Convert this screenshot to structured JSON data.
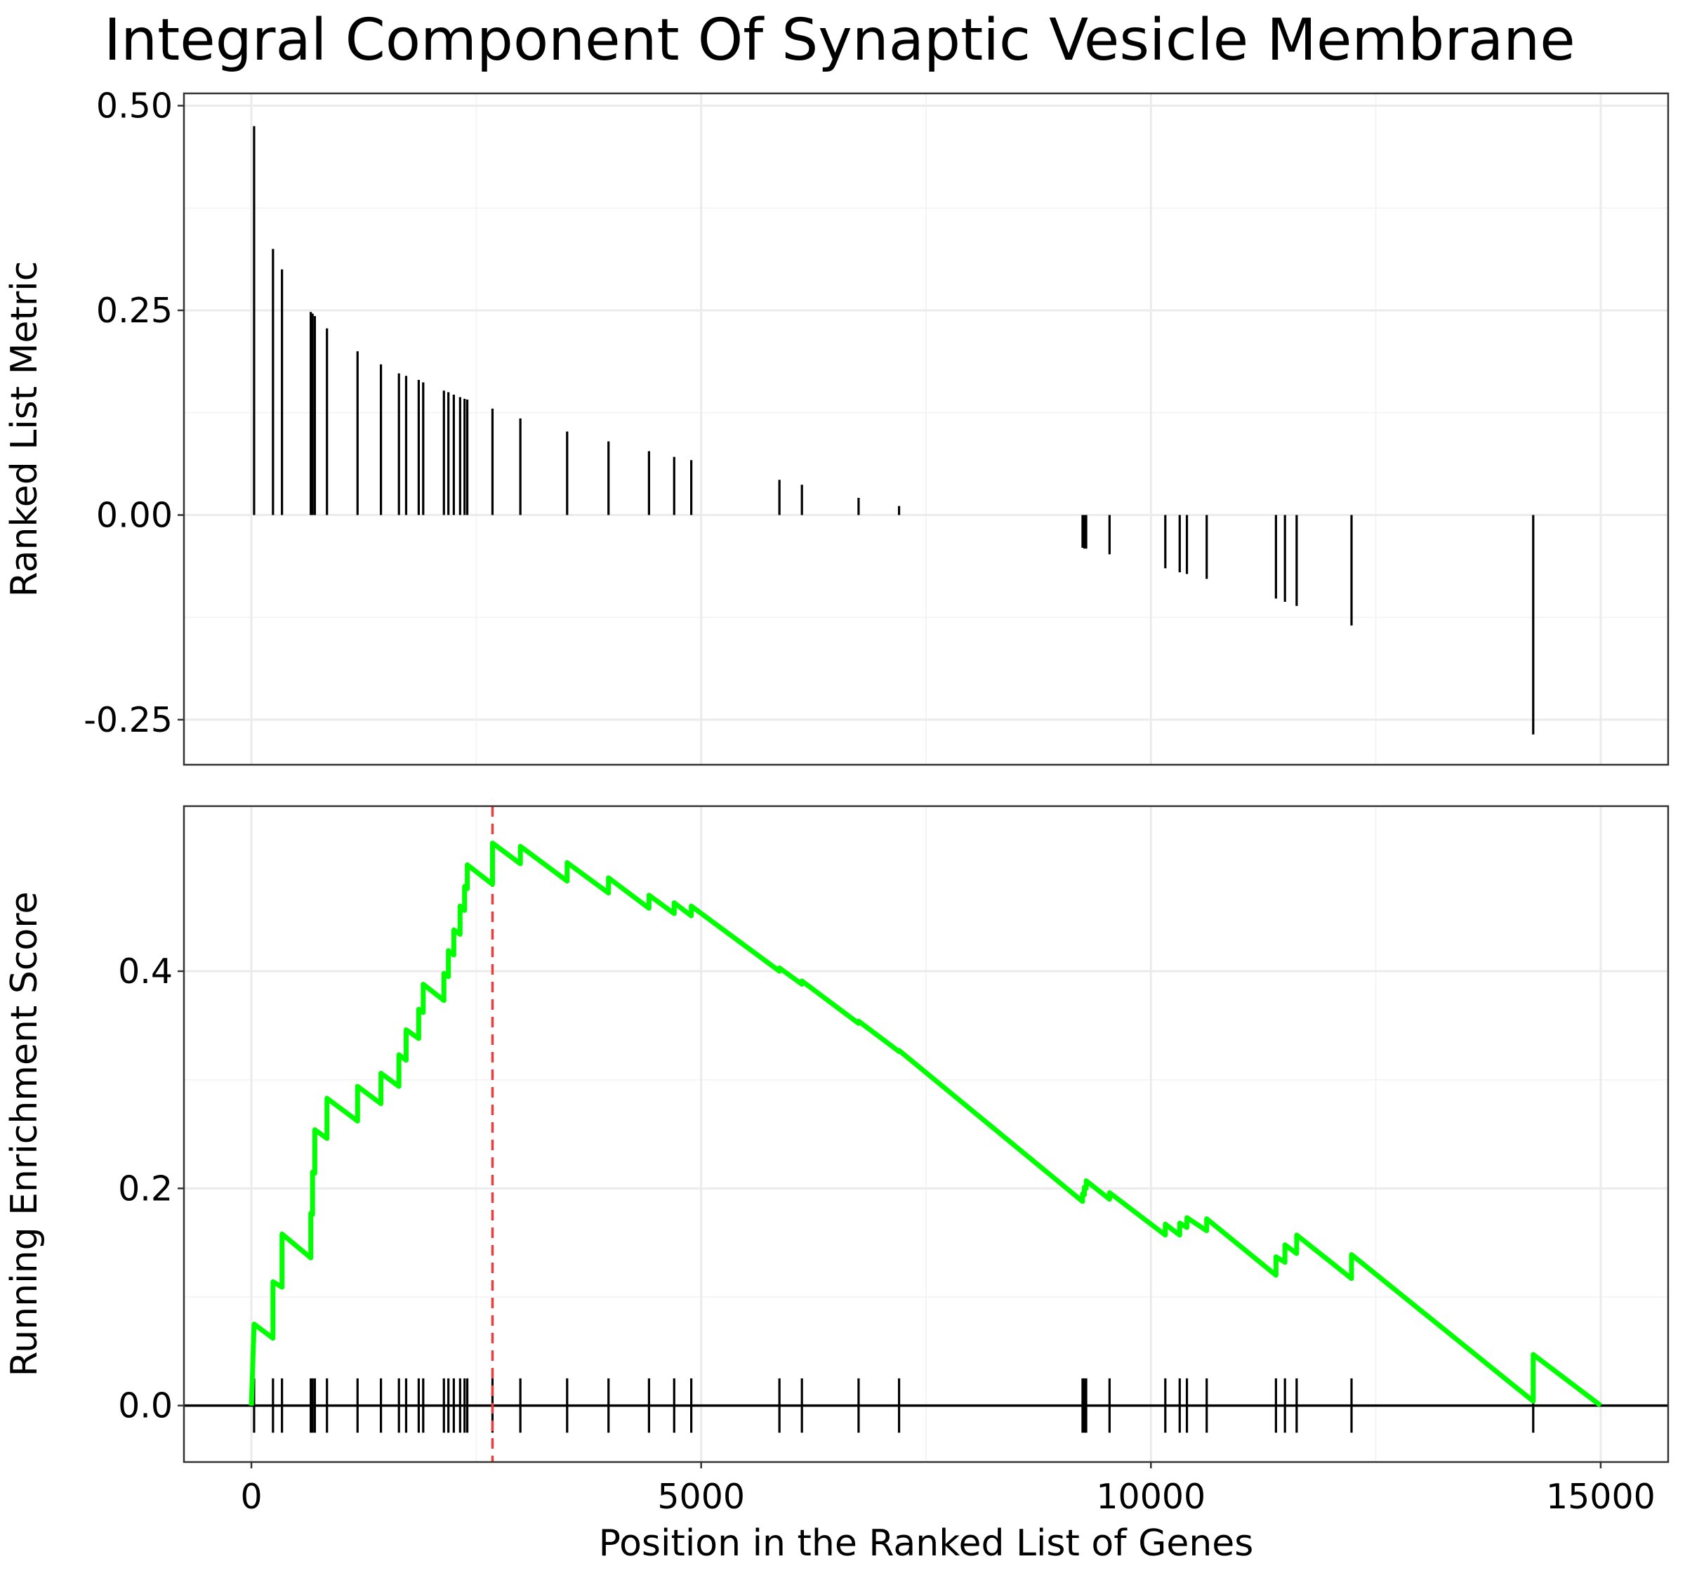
{
  "chart_data": {
    "type": "line",
    "title": "Integral Component Of Synaptic Vesicle Membrane",
    "xlabel": "Position in the Ranked List of Genes",
    "xlim": [
      -750,
      15750
    ],
    "x_ticks": [
      0,
      5000,
      10000,
      15000
    ],
    "x_tick_labels": [
      "0",
      "5000",
      "10000",
      "15000"
    ],
    "grid": true,
    "top_panel": {
      "type": "bar",
      "ylabel": "Ranked List Metric",
      "ylim": [
        -0.305,
        0.515
      ],
      "y_ticks": [
        0.5,
        0.25,
        0.0,
        -0.25
      ],
      "y_tick_labels": [
        "0.50",
        "0.25",
        "0.00",
        "-0.25"
      ],
      "bars": [
        {
          "x": 30,
          "value": 0.475
        },
        {
          "x": 240,
          "value": 0.325
        },
        {
          "x": 340,
          "value": 0.3
        },
        {
          "x": 660,
          "value": 0.248
        },
        {
          "x": 680,
          "value": 0.246
        },
        {
          "x": 705,
          "value": 0.243
        },
        {
          "x": 840,
          "value": 0.228
        },
        {
          "x": 1180,
          "value": 0.2
        },
        {
          "x": 1440,
          "value": 0.184
        },
        {
          "x": 1640,
          "value": 0.173
        },
        {
          "x": 1720,
          "value": 0.17
        },
        {
          "x": 1860,
          "value": 0.165
        },
        {
          "x": 1910,
          "value": 0.162
        },
        {
          "x": 2140,
          "value": 0.152
        },
        {
          "x": 2190,
          "value": 0.15
        },
        {
          "x": 2250,
          "value": 0.147
        },
        {
          "x": 2320,
          "value": 0.144
        },
        {
          "x": 2370,
          "value": 0.142
        },
        {
          "x": 2400,
          "value": 0.141
        },
        {
          "x": 2680,
          "value": 0.13
        },
        {
          "x": 2990,
          "value": 0.118
        },
        {
          "x": 3510,
          "value": 0.102
        },
        {
          "x": 3970,
          "value": 0.09
        },
        {
          "x": 4420,
          "value": 0.078
        },
        {
          "x": 4700,
          "value": 0.071
        },
        {
          "x": 4890,
          "value": 0.067
        },
        {
          "x": 5870,
          "value": 0.043
        },
        {
          "x": 6120,
          "value": 0.037
        },
        {
          "x": 6750,
          "value": 0.021
        },
        {
          "x": 7200,
          "value": 0.011
        },
        {
          "x": 9240,
          "value": -0.04
        },
        {
          "x": 9260,
          "value": -0.041
        },
        {
          "x": 9280,
          "value": -0.041
        },
        {
          "x": 9540,
          "value": -0.048
        },
        {
          "x": 10160,
          "value": -0.065
        },
        {
          "x": 10320,
          "value": -0.07
        },
        {
          "x": 10400,
          "value": -0.072
        },
        {
          "x": 10620,
          "value": -0.078
        },
        {
          "x": 11390,
          "value": -0.102
        },
        {
          "x": 11490,
          "value": -0.106
        },
        {
          "x": 11620,
          "value": -0.111
        },
        {
          "x": 12230,
          "value": -0.135
        },
        {
          "x": 14250,
          "value": -0.268
        }
      ]
    },
    "bottom_panel": {
      "type": "line",
      "ylabel": "Running Enrichment Score",
      "ylim": [
        -0.052,
        0.552
      ],
      "y_ticks": [
        0.0,
        0.2,
        0.4
      ],
      "y_tick_labels": [
        "0.0",
        "0.2",
        "0.4"
      ],
      "series": [
        {
          "color": "#00ff00",
          "points": [
            [
              0,
              0.0
            ],
            [
              30,
              0.075
            ],
            [
              240,
              0.062
            ],
            [
              240,
              0.114
            ],
            [
              340,
              0.109
            ],
            [
              340,
              0.158
            ],
            [
              660,
              0.136
            ],
            [
              660,
              0.177
            ],
            [
              680,
              0.176
            ],
            [
              680,
              0.215
            ],
            [
              705,
              0.214
            ],
            [
              705,
              0.254
            ],
            [
              840,
              0.246
            ],
            [
              840,
              0.283
            ],
            [
              1180,
              0.262
            ],
            [
              1180,
              0.294
            ],
            [
              1440,
              0.278
            ],
            [
              1440,
              0.306
            ],
            [
              1640,
              0.294
            ],
            [
              1640,
              0.323
            ],
            [
              1720,
              0.318
            ],
            [
              1720,
              0.346
            ],
            [
              1860,
              0.338
            ],
            [
              1860,
              0.365
            ],
            [
              1910,
              0.362
            ],
            [
              1910,
              0.388
            ],
            [
              2140,
              0.373
            ],
            [
              2140,
              0.398
            ],
            [
              2190,
              0.395
            ],
            [
              2190,
              0.419
            ],
            [
              2250,
              0.415
            ],
            [
              2250,
              0.438
            ],
            [
              2320,
              0.434
            ],
            [
              2320,
              0.46
            ],
            [
              2370,
              0.456
            ],
            [
              2370,
              0.478
            ],
            [
              2400,
              0.476
            ],
            [
              2400,
              0.498
            ],
            [
              2680,
              0.48
            ],
            [
              2680,
              0.518
            ],
            [
              2990,
              0.499
            ],
            [
              2990,
              0.515
            ],
            [
              3510,
              0.483
            ],
            [
              3510,
              0.5
            ],
            [
              3970,
              0.472
            ],
            [
              3970,
              0.486
            ],
            [
              4420,
              0.458
            ],
            [
              4420,
              0.47
            ],
            [
              4700,
              0.453
            ],
            [
              4700,
              0.463
            ],
            [
              4890,
              0.451
            ],
            [
              4890,
              0.46
            ],
            [
              5870,
              0.4
            ],
            [
              5870,
              0.403
            ],
            [
              6120,
              0.388
            ],
            [
              6120,
              0.391
            ],
            [
              6750,
              0.352
            ],
            [
              6750,
              0.354
            ],
            [
              7200,
              0.326
            ],
            [
              7200,
              0.327
            ],
            [
              9240,
              0.188
            ],
            [
              9240,
              0.195
            ],
            [
              9260,
              0.194
            ],
            [
              9260,
              0.201
            ],
            [
              9280,
              0.2
            ],
            [
              9280,
              0.207
            ],
            [
              9540,
              0.19
            ],
            [
              9540,
              0.196
            ],
            [
              10160,
              0.157
            ],
            [
              10160,
              0.167
            ],
            [
              10320,
              0.157
            ],
            [
              10320,
              0.168
            ],
            [
              10400,
              0.164
            ],
            [
              10400,
              0.173
            ],
            [
              10620,
              0.161
            ],
            [
              10620,
              0.172
            ],
            [
              11390,
              0.12
            ],
            [
              11390,
              0.137
            ],
            [
              11490,
              0.132
            ],
            [
              11490,
              0.148
            ],
            [
              11620,
              0.14
            ],
            [
              11620,
              0.157
            ],
            [
              12230,
              0.117
            ],
            [
              12230,
              0.139
            ],
            [
              14250,
              0.004
            ],
            [
              14250,
              0.047
            ],
            [
              15000,
              0.0
            ]
          ]
        }
      ],
      "hit_positions": [
        30,
        240,
        340,
        660,
        680,
        705,
        840,
        1180,
        1440,
        1640,
        1720,
        1860,
        1910,
        2140,
        2190,
        2250,
        2320,
        2370,
        2400,
        2680,
        2990,
        3510,
        3970,
        4420,
        4700,
        4890,
        5870,
        6120,
        6750,
        7200,
        9240,
        9260,
        9280,
        9540,
        10160,
        10320,
        10400,
        10620,
        11390,
        11490,
        11620,
        12230,
        14250
      ],
      "peak_x": 2680,
      "peak_line_color": "#ee3b3b"
    }
  }
}
